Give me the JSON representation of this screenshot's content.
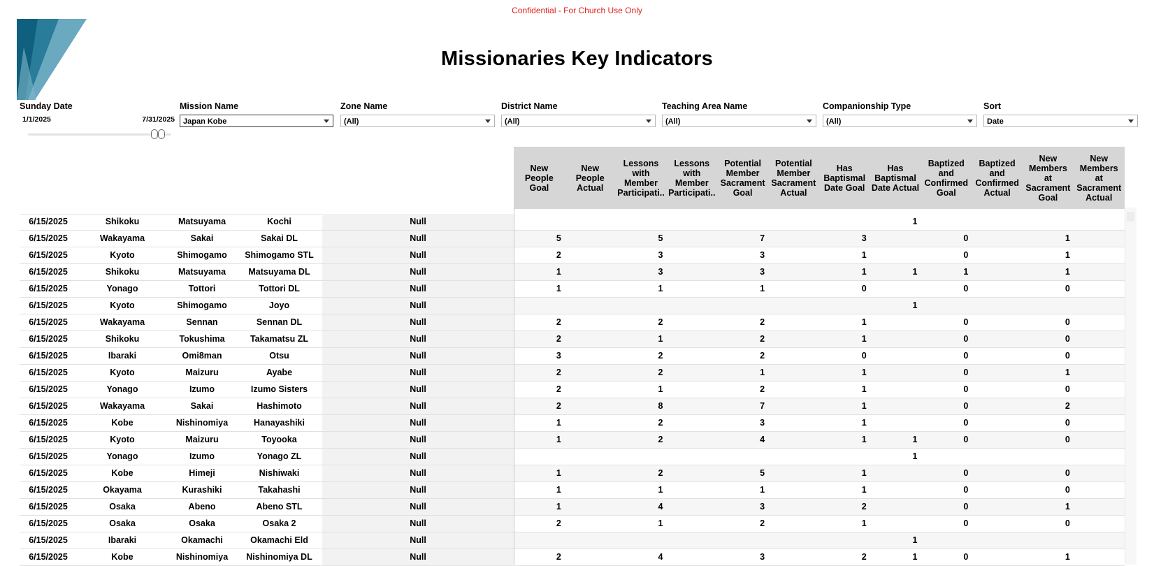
{
  "banner": {
    "confidential": "Confidential - For Church Use Only"
  },
  "header": {
    "title": "Missionaries Key Indicators"
  },
  "colors": {
    "accent_teal": "#2a7d9a",
    "warning_red": "#e0201b"
  },
  "filters": {
    "sunday_date": {
      "label": "Sunday Date",
      "start": "1/1/2025",
      "end": "7/31/2025",
      "range_fraction": [
        0.0,
        1.0
      ]
    },
    "mission_name": {
      "label": "Mission Name",
      "value": "Japan Kobe"
    },
    "zone_name": {
      "label": "Zone Name",
      "value": "(All)"
    },
    "district_name": {
      "label": "District Name",
      "value": "(All)"
    },
    "teaching_area_name": {
      "label": "Teaching Area Name",
      "value": "(All)"
    },
    "companionship_type": {
      "label": "Companionship Type",
      "value": "(All)"
    },
    "sort": {
      "label": "Sort",
      "value": "Date"
    }
  },
  "table": {
    "measure_headers": [
      "New People Goal",
      "New People Actual",
      "Lessons with Member Participati..",
      "Lessons with Member Participati..",
      "Potential Member Sacrament Goal",
      "Potential Member Sacrament Actual",
      "Has Baptismal Date Goal",
      "Has Baptismal Date Actual",
      "Baptized and Confirmed Goal",
      "Baptized and Confirmed Actual",
      "New Members at Sacrament Goal",
      "New Members at Sacrament Actual"
    ],
    "rows": [
      {
        "date": "6/15/2025",
        "zone": "Shikoku",
        "district": "Matsuyama",
        "area": "Kochi",
        "type": "Null",
        "values": [
          "",
          "",
          "",
          "",
          "",
          "",
          "",
          "1",
          "",
          "",
          "",
          ""
        ]
      },
      {
        "date": "6/15/2025",
        "zone": "Wakayama",
        "district": "Sakai",
        "area": "Sakai DL",
        "type": "Null",
        "values": [
          "5",
          "",
          "5",
          "",
          "7",
          "",
          "3",
          "",
          "0",
          "",
          "1",
          ""
        ]
      },
      {
        "date": "6/15/2025",
        "zone": "Kyoto",
        "district": "Shimogamo",
        "area": "Shimogamo STL",
        "type": "Null",
        "values": [
          "2",
          "",
          "3",
          "",
          "3",
          "",
          "1",
          "",
          "0",
          "",
          "1",
          ""
        ]
      },
      {
        "date": "6/15/2025",
        "zone": "Shikoku",
        "district": "Matsuyama",
        "area": "Matsuyama DL",
        "type": "Null",
        "values": [
          "1",
          "",
          "3",
          "",
          "3",
          "",
          "1",
          "1",
          "1",
          "",
          "1",
          ""
        ]
      },
      {
        "date": "6/15/2025",
        "zone": "Yonago",
        "district": "Tottori",
        "area": "Tottori DL",
        "type": "Null",
        "values": [
          "1",
          "",
          "1",
          "",
          "1",
          "",
          "0",
          "",
          "0",
          "",
          "0",
          ""
        ]
      },
      {
        "date": "6/15/2025",
        "zone": "Kyoto",
        "district": "Shimogamo",
        "area": "Joyo",
        "type": "Null",
        "values": [
          "",
          "",
          "",
          "",
          "",
          "",
          "",
          "1",
          "",
          "",
          "",
          ""
        ]
      },
      {
        "date": "6/15/2025",
        "zone": "Wakayama",
        "district": "Sennan",
        "area": "Sennan DL",
        "type": "Null",
        "values": [
          "2",
          "",
          "2",
          "",
          "2",
          "",
          "1",
          "",
          "0",
          "",
          "0",
          ""
        ]
      },
      {
        "date": "6/15/2025",
        "zone": "Shikoku",
        "district": "Tokushima",
        "area": "Takamatsu ZL",
        "type": "Null",
        "values": [
          "2",
          "",
          "1",
          "",
          "2",
          "",
          "1",
          "",
          "0",
          "",
          "0",
          ""
        ]
      },
      {
        "date": "6/15/2025",
        "zone": "Ibaraki",
        "district": "Omi8man",
        "area": "Otsu",
        "type": "Null",
        "values": [
          "3",
          "",
          "2",
          "",
          "2",
          "",
          "0",
          "",
          "0",
          "",
          "0",
          ""
        ]
      },
      {
        "date": "6/15/2025",
        "zone": "Kyoto",
        "district": "Maizuru",
        "area": "Ayabe",
        "type": "Null",
        "values": [
          "2",
          "",
          "2",
          "",
          "1",
          "",
          "1",
          "",
          "0",
          "",
          "1",
          ""
        ]
      },
      {
        "date": "6/15/2025",
        "zone": "Yonago",
        "district": "Izumo",
        "area": "Izumo Sisters",
        "type": "Null",
        "values": [
          "2",
          "",
          "1",
          "",
          "2",
          "",
          "1",
          "",
          "0",
          "",
          "0",
          ""
        ]
      },
      {
        "date": "6/15/2025",
        "zone": "Wakayama",
        "district": "Sakai",
        "area": "Hashimoto",
        "type": "Null",
        "values": [
          "2",
          "",
          "8",
          "",
          "7",
          "",
          "1",
          "",
          "0",
          "",
          "2",
          ""
        ]
      },
      {
        "date": "6/15/2025",
        "zone": "Kobe",
        "district": "Nishinomiya",
        "area": "Hanayashiki",
        "type": "Null",
        "values": [
          "1",
          "",
          "2",
          "",
          "3",
          "",
          "1",
          "",
          "0",
          "",
          "0",
          ""
        ]
      },
      {
        "date": "6/15/2025",
        "zone": "Kyoto",
        "district": "Maizuru",
        "area": "Toyooka",
        "type": "Null",
        "values": [
          "1",
          "",
          "2",
          "",
          "4",
          "",
          "1",
          "1",
          "0",
          "",
          "0",
          ""
        ]
      },
      {
        "date": "6/15/2025",
        "zone": "Yonago",
        "district": "Izumo",
        "area": "Yonago ZL",
        "type": "Null",
        "values": [
          "",
          "",
          "",
          "",
          "",
          "",
          "",
          "1",
          "",
          "",
          "",
          ""
        ]
      },
      {
        "date": "6/15/2025",
        "zone": "Kobe",
        "district": "Himeji",
        "area": "Nishiwaki",
        "type": "Null",
        "values": [
          "1",
          "",
          "2",
          "",
          "5",
          "",
          "1",
          "",
          "0",
          "",
          "0",
          ""
        ]
      },
      {
        "date": "6/15/2025",
        "zone": "Okayama",
        "district": "Kurashiki",
        "area": "Takahashi",
        "type": "Null",
        "values": [
          "1",
          "",
          "1",
          "",
          "1",
          "",
          "1",
          "",
          "0",
          "",
          "0",
          ""
        ]
      },
      {
        "date": "6/15/2025",
        "zone": "Osaka",
        "district": "Abeno",
        "area": "Abeno STL",
        "type": "Null",
        "values": [
          "1",
          "",
          "4",
          "",
          "3",
          "",
          "2",
          "",
          "0",
          "",
          "1",
          ""
        ]
      },
      {
        "date": "6/15/2025",
        "zone": "Osaka",
        "district": "Osaka",
        "area": "Osaka 2",
        "type": "Null",
        "values": [
          "2",
          "",
          "1",
          "",
          "2",
          "",
          "1",
          "",
          "0",
          "",
          "0",
          ""
        ]
      },
      {
        "date": "6/15/2025",
        "zone": "Ibaraki",
        "district": "Okamachi",
        "area": "Okamachi Eld",
        "type": "Null",
        "values": [
          "",
          "",
          "",
          "",
          "",
          "",
          "",
          "1",
          "",
          "",
          "",
          ""
        ]
      },
      {
        "date": "6/15/2025",
        "zone": "Kobe",
        "district": "Nishinomiya",
        "area": "Nishinomiya DL",
        "type": "Null",
        "values": [
          "2",
          "",
          "4",
          "",
          "3",
          "",
          "2",
          "1",
          "0",
          "",
          "1",
          ""
        ]
      }
    ]
  }
}
